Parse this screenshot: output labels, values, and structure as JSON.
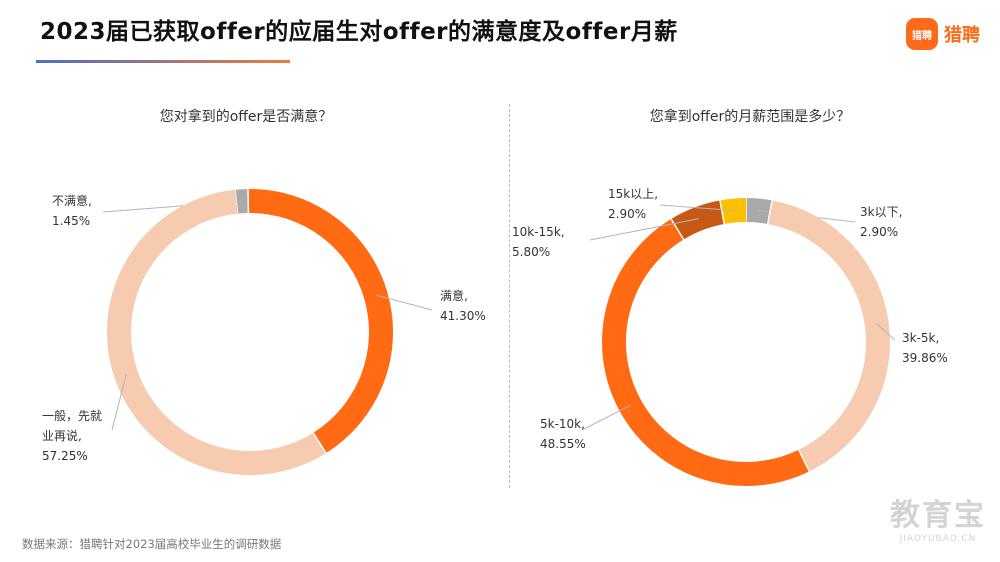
{
  "header": {
    "title": "2023届已获取offer的应届生对offer的满意度及offer月薪",
    "logo_text": "猎聘",
    "logo_mark_text": "猎聘"
  },
  "source_note": "数据来源：猎聘针对2023届高校毕业生的调研数据",
  "watermark": {
    "main": "教育宝",
    "sub": "JIAOYUBAO.CN"
  },
  "colors": {
    "accent": "#ff6a1a"
  },
  "chart_data": [
    {
      "type": "pie",
      "donut": true,
      "title": "您对拿到的offer是否满意？",
      "slices": [
        {
          "label": "不满意,",
          "value_label": "1.45%",
          "value": 1.45,
          "color": "#a9a9a9"
        },
        {
          "label": "满意,",
          "value_label": "41.30%",
          "value": 41.3,
          "color": "#ff6a12"
        },
        {
          "label": "一般，先就 业再说,",
          "value_label": "57.25%",
          "value": 57.25,
          "color": "#f7cbb0"
        }
      ]
    },
    {
      "type": "pie",
      "donut": true,
      "title": "您拿到offer的月薪范围是多少？",
      "slices": [
        {
          "label": "3k以下,",
          "value_label": "2.90%",
          "value": 2.9,
          "color": "#a9a9a9"
        },
        {
          "label": "3k-5k,",
          "value_label": "39.86%",
          "value": 39.86,
          "color": "#f7cbb0"
        },
        {
          "label": "5k-10k,",
          "value_label": "48.55%",
          "value": 48.55,
          "color": "#ff6a12"
        },
        {
          "label": "10k-15k,",
          "value_label": "5.80%",
          "value": 5.8,
          "color": "#c65a14"
        },
        {
          "label": "15k以上,",
          "value_label": "2.90%",
          "value": 2.9,
          "color": "#ffc000"
        }
      ]
    }
  ]
}
